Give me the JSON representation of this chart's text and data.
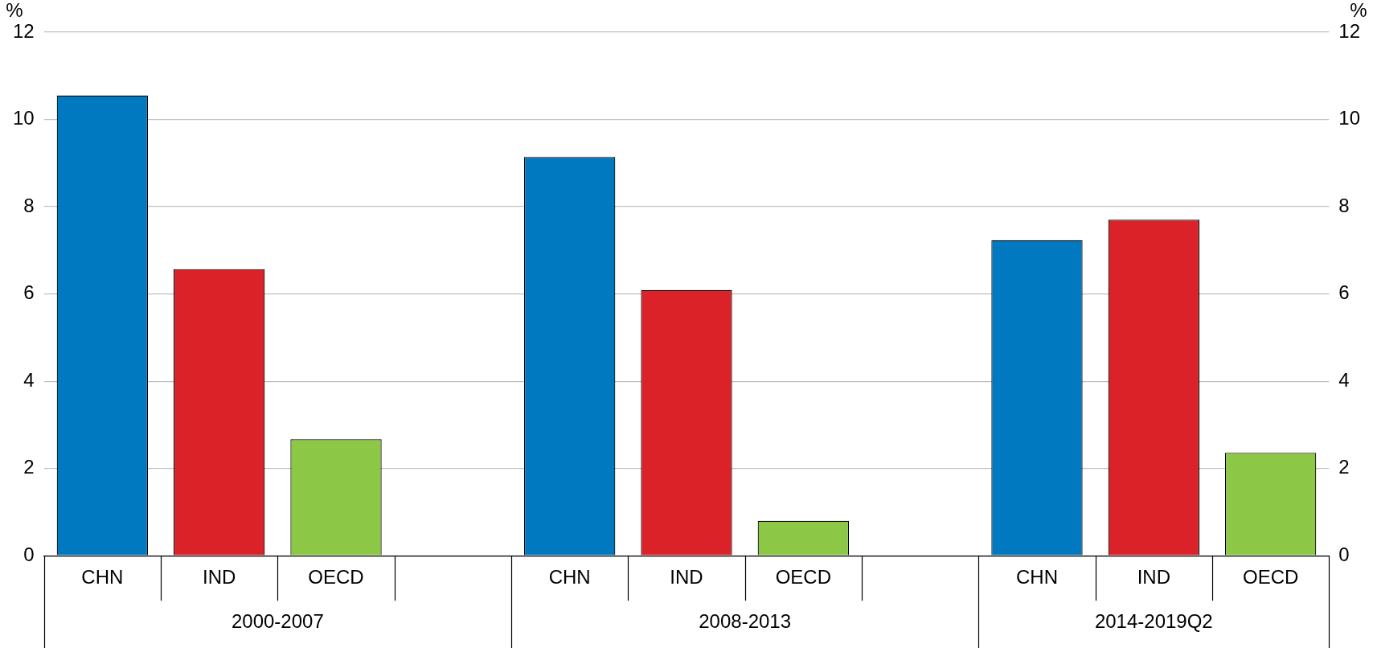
{
  "chart_data": {
    "type": "bar",
    "categories": [
      "CHN",
      "IND",
      "OECD",
      null,
      "CHN",
      "IND",
      "OECD",
      null,
      "CHN",
      "IND",
      "OECD"
    ],
    "values": [
      10.55,
      6.57,
      2.67,
      null,
      9.14,
      6.09,
      0.8,
      null,
      7.23,
      7.7,
      2.36
    ],
    "colors": [
      "#0079c1",
      "#dc2229",
      "#8cc846",
      "#ffffff",
      "#0079c1",
      "#dc2229",
      "#8cc846",
      "#ffffff",
      "#0079c1",
      "#dc2229",
      "#8cc846"
    ],
    "ylabel": "%",
    "y2label": "%",
    "ylim": [
      0,
      12
    ],
    "yticks": [
      0,
      2,
      4,
      6,
      8,
      10,
      12
    ],
    "y2lim": [
      0,
      12
    ],
    "y2ticks": [
      0,
      2,
      4,
      6,
      8,
      10,
      12
    ],
    "grid": "y",
    "legend": false,
    "annotations": [
      "2000-2007",
      "2008-2013",
      "2014-2019Q2"
    ]
  }
}
